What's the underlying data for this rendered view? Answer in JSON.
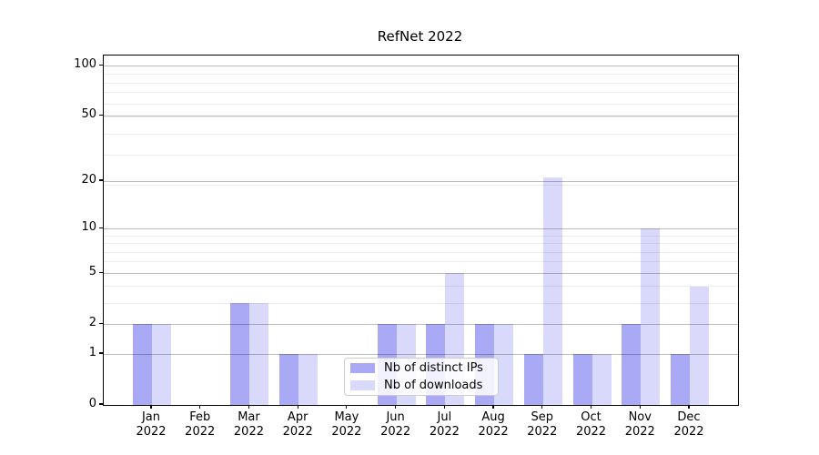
{
  "chart_data": {
    "type": "bar",
    "title": "RefNet 2022",
    "categories": [
      "Jan 2022",
      "Feb 2022",
      "Mar 2022",
      "Apr 2022",
      "May 2022",
      "Jun 2022",
      "Jul 2022",
      "Aug 2022",
      "Sep 2022",
      "Oct 2022",
      "Nov 2022",
      "Dec 2022"
    ],
    "month_labels": [
      "Jan",
      "Feb",
      "Mar",
      "Apr",
      "May",
      "Jun",
      "Jul",
      "Aug",
      "Sep",
      "Oct",
      "Nov",
      "Dec"
    ],
    "year_label": "2022",
    "series": [
      {
        "name": "Nb of distinct IPs",
        "color": "#a9a9f6",
        "values": [
          2,
          0,
          3,
          1,
          0,
          2,
          2,
          2,
          1,
          1,
          2,
          1
        ]
      },
      {
        "name": "Nb of downloads",
        "color": "#d9d9fb",
        "values": [
          2,
          0,
          3,
          1,
          0,
          2,
          5,
          2,
          21,
          1,
          10,
          4
        ]
      }
    ],
    "xlabel": "",
    "ylabel": "",
    "yscale": "log1p",
    "ylim": [
      0,
      115
    ],
    "ytick_values": [
      0,
      1,
      2,
      5,
      10,
      20,
      50,
      100
    ],
    "ytick_labels": [
      "0",
      "1",
      "2",
      "5",
      "10",
      "20",
      "50",
      "100"
    ],
    "minor_gridline_values": [
      3,
      4,
      6,
      7,
      8,
      9,
      19,
      29,
      39,
      49,
      59,
      69,
      79,
      89
    ],
    "grid": "horizontal major + minor",
    "legend_position": "lower center, inside axes",
    "colors": {
      "distinct_ips_bar": "#a9a9f6",
      "downloads_bar": "#d9d9fb",
      "major_grid": "rgba(0,0,0,0.26)",
      "minor_grid": "rgba(0,0,0,0.07)",
      "spine": "#000000",
      "text": "#000000",
      "legend_border": "#cccccc"
    }
  }
}
